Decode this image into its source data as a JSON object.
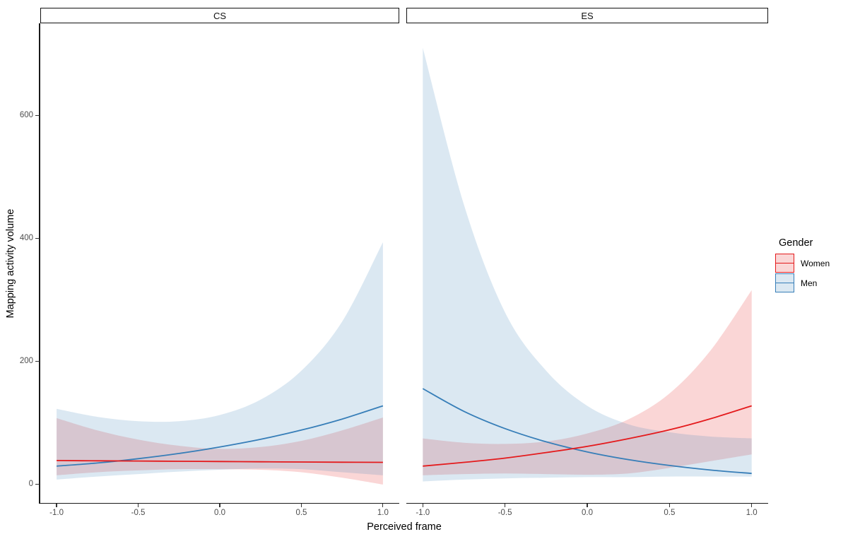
{
  "chart_data": {
    "type": "line",
    "title": "",
    "xlabel": "Perceived frame",
    "ylabel": "Mapping activity volume",
    "xlim": [
      -1.1,
      1.1
    ],
    "ylim": [
      -30,
      750
    ],
    "grid": "off",
    "legend_position": "right",
    "x_tick_values": [
      -1.0,
      -0.5,
      0.0,
      0.5,
      1.0
    ],
    "x_tick_labels": [
      "-1.0",
      "-0.5",
      "0.0",
      "0.5",
      "1.0"
    ],
    "y_tick_values": [
      0,
      200,
      400,
      600
    ],
    "y_tick_labels": [
      "0",
      "200",
      "400",
      "600"
    ],
    "x": [
      -1,
      -0.75,
      -0.5,
      -0.25,
      0,
      0.25,
      0.5,
      0.75,
      1
    ],
    "legend": {
      "title": "Gender",
      "entries": [
        {
          "label": "Women",
          "color": "#E41A1C"
        },
        {
          "label": "Men",
          "color": "#377EB8"
        }
      ]
    },
    "facets": [
      {
        "label": "CS",
        "series": [
          {
            "name": "Women",
            "color": "#E41A1C",
            "line": [
              39,
              38.6,
              38.2,
              37.8,
              37.4,
              37,
              36.6,
              36.3,
              36
            ],
            "lower": [
              15,
              20,
              23,
              25,
              25,
              24,
              20,
              11,
              0
            ],
            "upper": [
              108,
              88,
              73,
              63,
              58,
              61,
              71,
              88,
              109
            ]
          },
          {
            "name": "Men",
            "color": "#377EB8",
            "line": [
              30,
              35,
              42,
              50.5,
              61,
              73.5,
              88.5,
              106.5,
              128
            ],
            "lower": [
              8,
              13,
              17,
              21,
              24,
              26,
              25,
              20,
              15
            ],
            "upper": [
              123,
              110,
              103,
              103,
              113,
              138,
              185,
              265,
              394
            ]
          }
        ]
      },
      {
        "label": "ES",
        "series": [
          {
            "name": "Women",
            "color": "#E41A1C",
            "line": [
              30,
              36,
              43,
              52,
              62,
              74.5,
              89,
              107,
              128
            ],
            "lower": [
              15,
              17,
              18,
              17,
              16,
              18,
              27,
              38,
              49
            ],
            "upper": [
              75,
              68,
              66,
              70,
              83,
              106,
              148,
              218,
              316
            ]
          },
          {
            "name": "Men",
            "color": "#377EB8",
            "line": [
              156,
              119,
              91,
              69.5,
              53,
              40.5,
              31,
              23.5,
              18
            ],
            "lower": [
              5,
              8,
              10,
              11,
              12,
              12,
              13,
              13,
              13
            ],
            "upper": [
              710,
              455,
              280,
              185,
              128,
              98,
              85,
              78,
              75
            ]
          }
        ]
      }
    ]
  }
}
